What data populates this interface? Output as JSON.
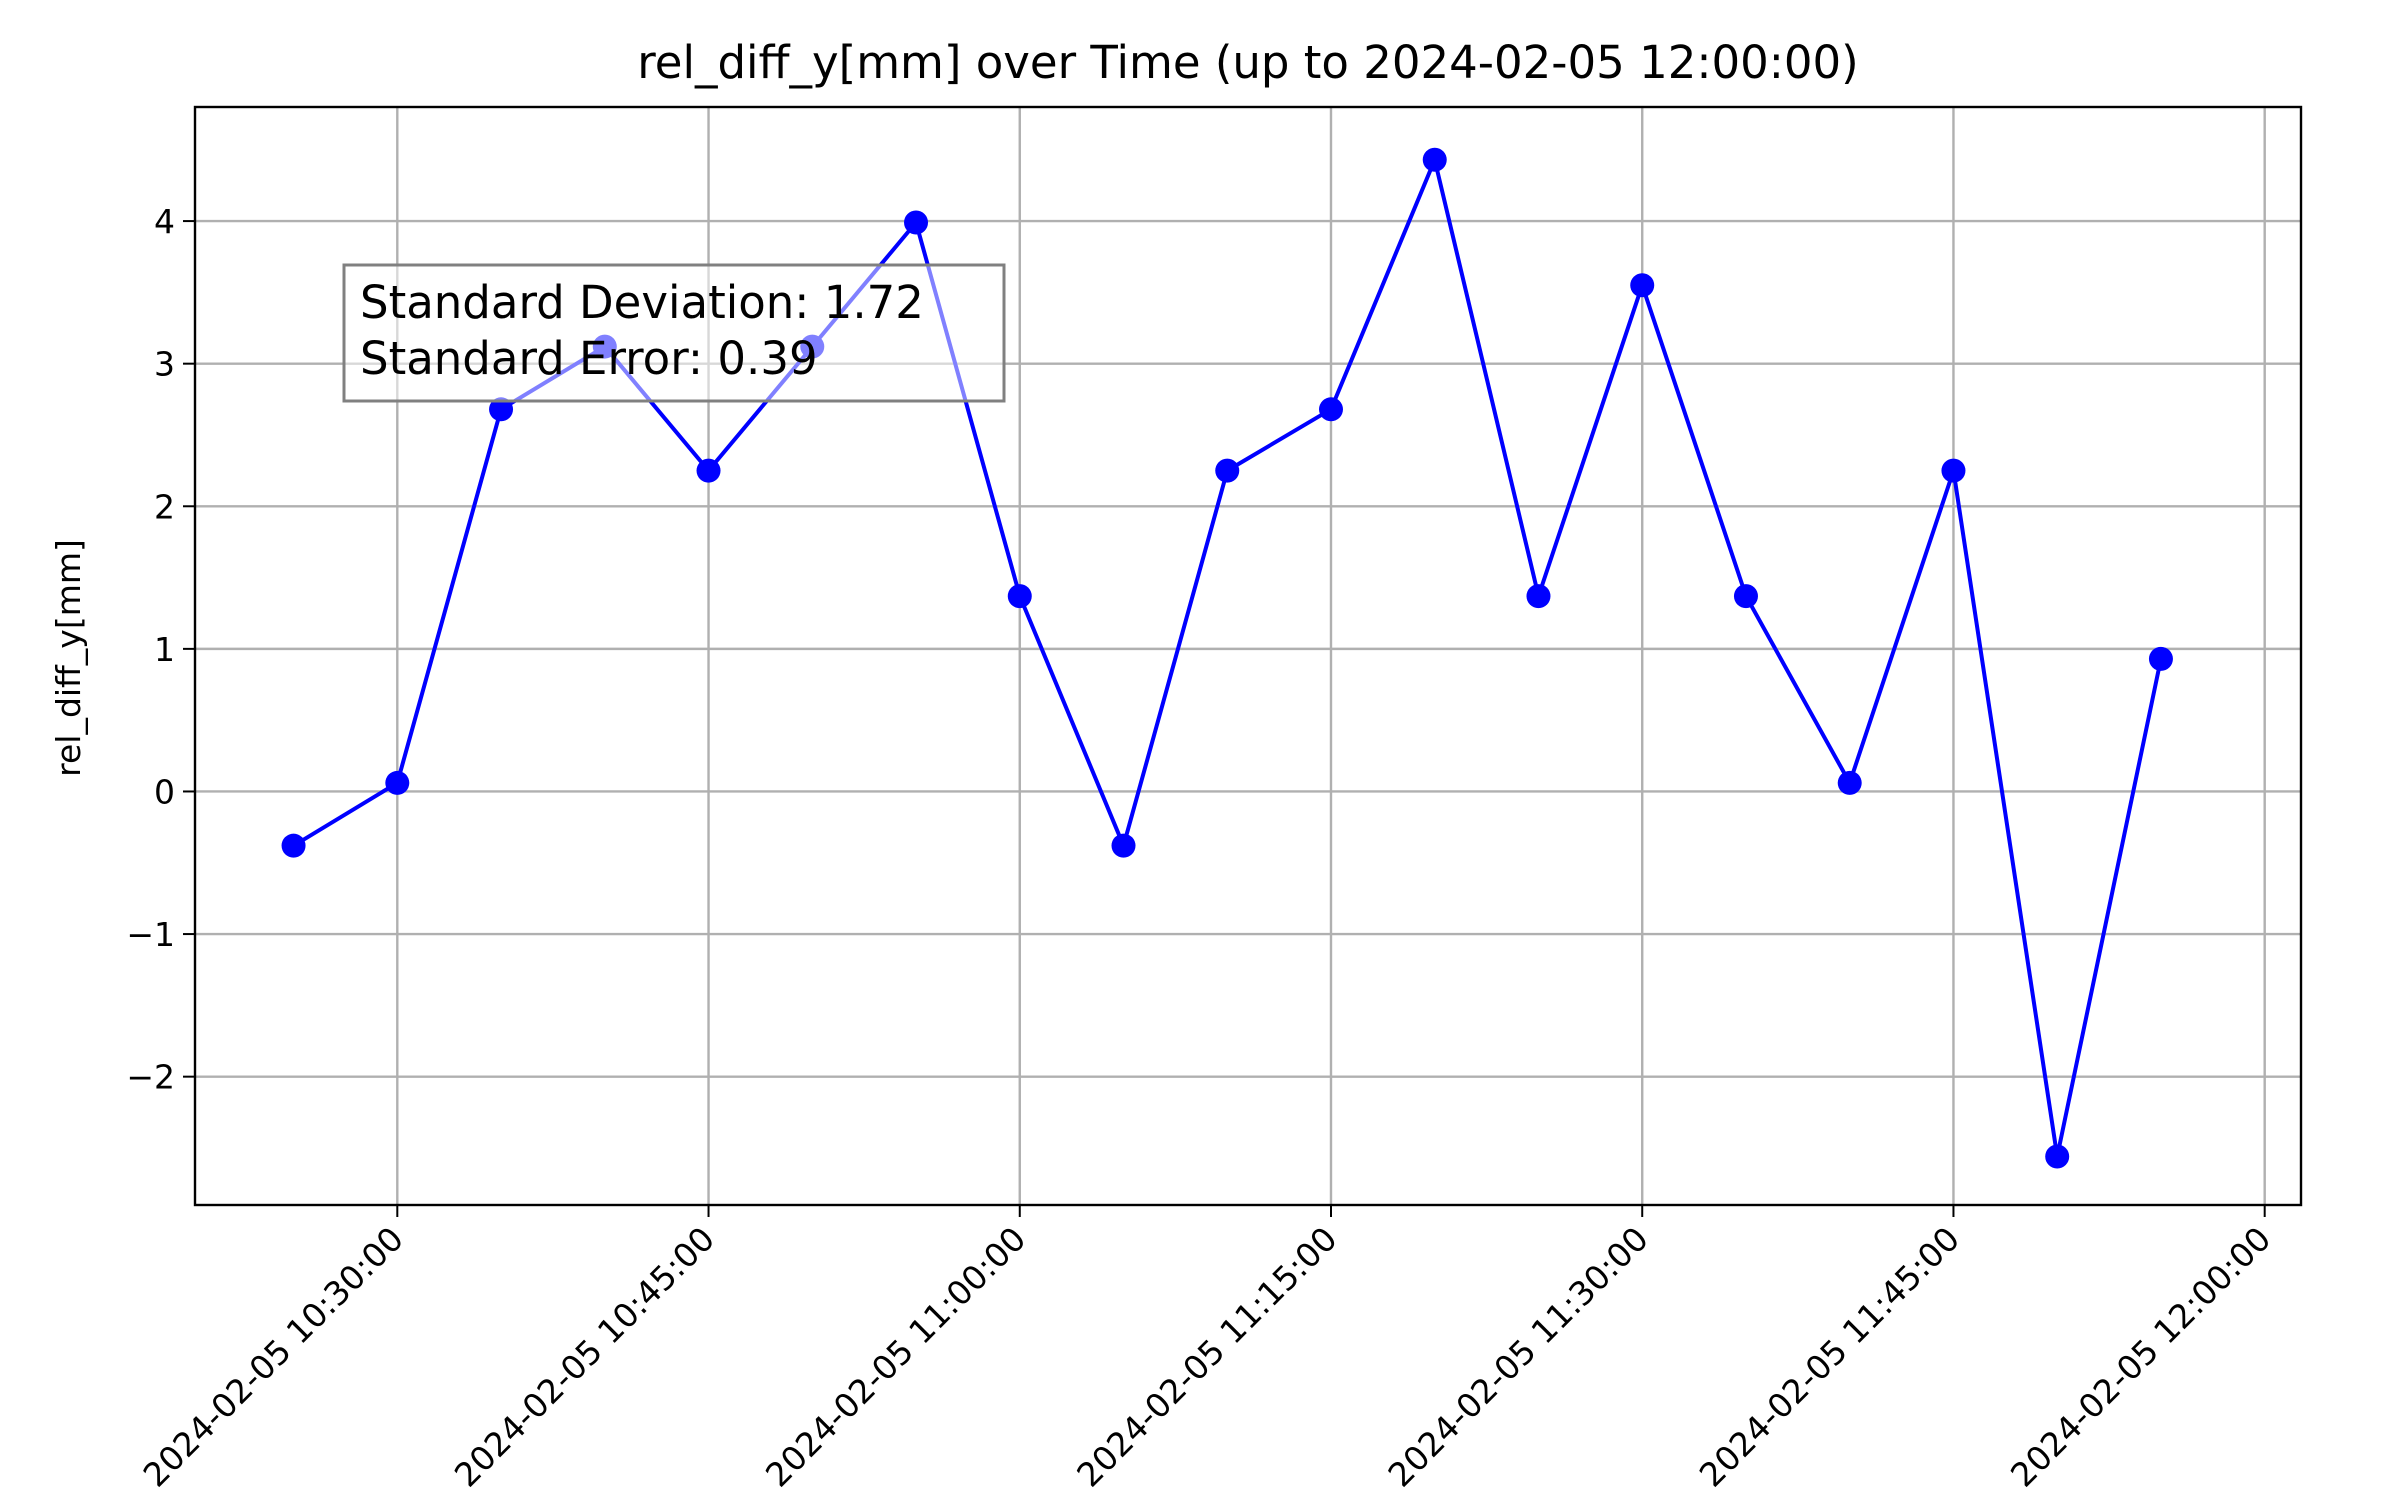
{
  "chart_data": {
    "type": "line",
    "title": "rel_diff_y[mm] over Time (up to 2024-02-05 12:00:00)",
    "xlabel": "",
    "ylabel": "rel_diff_y[mm]",
    "x": [
      "2024-02-05 10:25:00",
      "2024-02-05 10:30:00",
      "2024-02-05 10:35:00",
      "2024-02-05 10:40:00",
      "2024-02-05 10:45:00",
      "2024-02-05 10:50:00",
      "2024-02-05 10:55:00",
      "2024-02-05 11:00:00",
      "2024-02-05 11:05:00",
      "2024-02-05 11:10:00",
      "2024-02-05 11:15:00",
      "2024-02-05 11:20:00",
      "2024-02-05 11:25:00",
      "2024-02-05 11:30:00",
      "2024-02-05 11:35:00",
      "2024-02-05 11:40:00",
      "2024-02-05 11:45:00",
      "2024-02-05 11:50:00",
      "2024-02-05 11:55:00"
    ],
    "series": [
      {
        "values": [
          -0.38,
          0.06,
          2.68,
          3.12,
          2.25,
          3.12,
          3.99,
          1.37,
          -0.38,
          2.25,
          2.68,
          4.43,
          1.37,
          3.55,
          1.37,
          0.06,
          2.25,
          -2.56,
          0.93
        ],
        "color": "#0000ff"
      }
    ],
    "x_ticks": [
      "2024-02-05 10:30:00",
      "2024-02-05 10:45:00",
      "2024-02-05 11:00:00",
      "2024-02-05 11:15:00",
      "2024-02-05 11:30:00",
      "2024-02-05 11:45:00",
      "2024-02-05 12:00:00"
    ],
    "y_ticks": [
      -2,
      -1,
      0,
      1,
      2,
      3,
      4
    ],
    "y_tick_labels": [
      "−2",
      "−1",
      "0",
      "1",
      "2",
      "3",
      "4"
    ],
    "ylim": [
      -2.9,
      4.8
    ],
    "xlim": [
      "2024-02-05 10:20:15",
      "2024-02-05 12:01:45"
    ],
    "grid": true,
    "annotation": {
      "lines": [
        "Standard Deviation: 1.72",
        "Standard Error: 0.39"
      ]
    }
  }
}
